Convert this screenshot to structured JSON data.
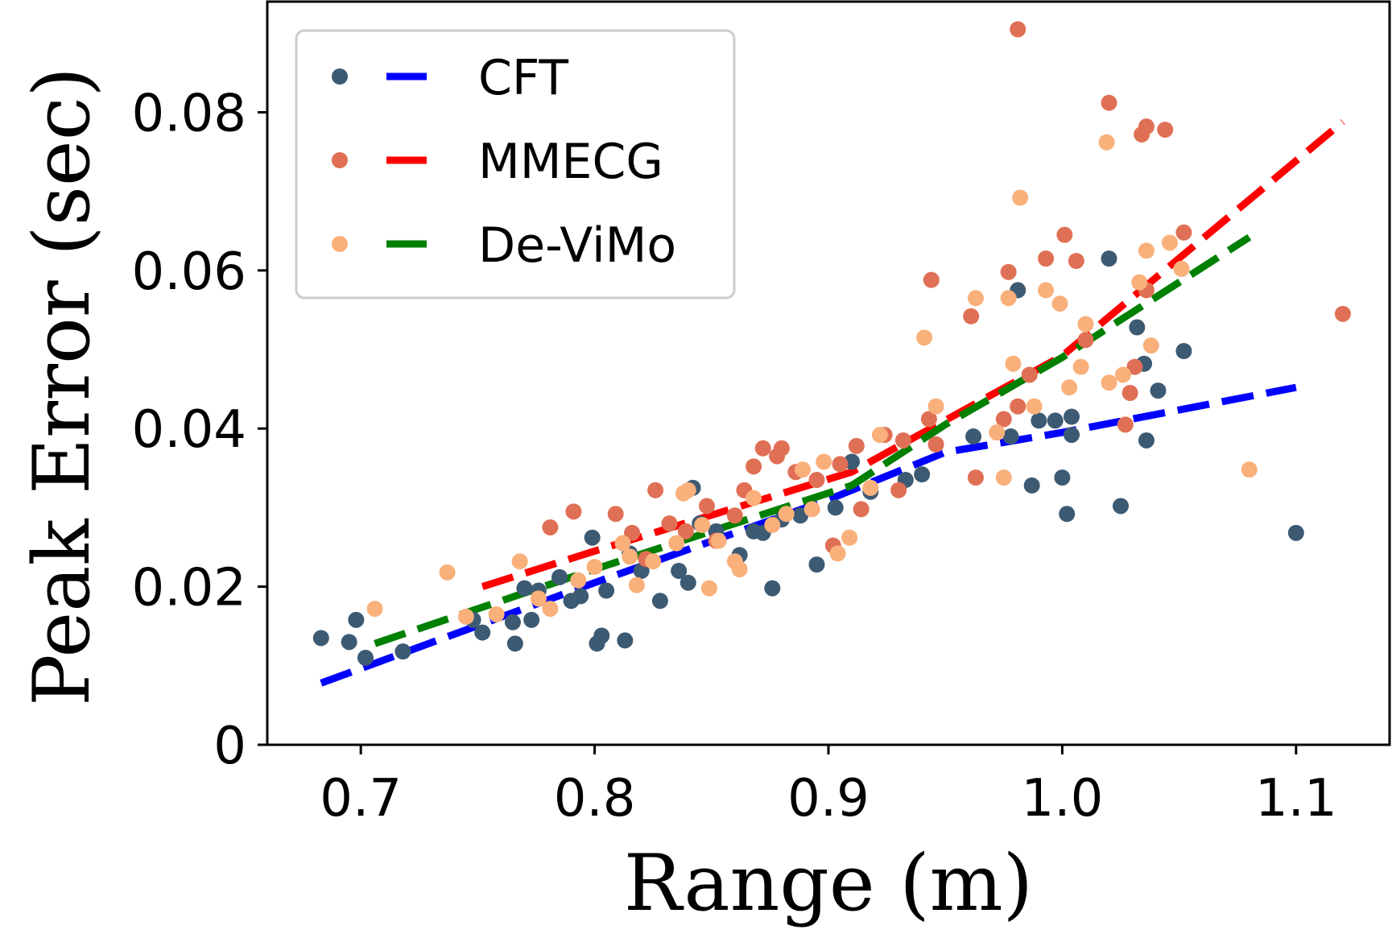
{
  "chart_data": {
    "type": "scatter",
    "xlabel": "Range (m)",
    "ylabel": "Peak Error (sec)",
    "xlim": [
      0.66,
      1.14
    ],
    "ylim": [
      0,
      0.094
    ],
    "xticks": [
      0.7,
      0.8,
      0.9,
      1.0,
      1.1
    ],
    "xtick_labels": [
      "0.7",
      "0.8",
      "0.9",
      "1.0",
      "1.1"
    ],
    "yticks": [
      0,
      0.02,
      0.04,
      0.06,
      0.08
    ],
    "ytick_labels": [
      "0",
      "0.02",
      "0.04",
      "0.06",
      "0.08"
    ],
    "grid": false,
    "legend_position": "top-left",
    "series": [
      {
        "name": "CFT",
        "marker_color": "#3d5a73",
        "line_color": "#0000ff",
        "points": [
          [
            0.683,
            0.0135
          ],
          [
            0.695,
            0.013
          ],
          [
            0.698,
            0.0158
          ],
          [
            0.702,
            0.011
          ],
          [
            0.718,
            0.0118
          ],
          [
            0.748,
            0.0158
          ],
          [
            0.752,
            0.0142
          ],
          [
            0.765,
            0.0155
          ],
          [
            0.766,
            0.0128
          ],
          [
            0.77,
            0.0198
          ],
          [
            0.773,
            0.0158
          ],
          [
            0.776,
            0.0195
          ],
          [
            0.785,
            0.0212
          ],
          [
            0.79,
            0.0182
          ],
          [
            0.794,
            0.0188
          ],
          [
            0.799,
            0.0262
          ],
          [
            0.801,
            0.0128
          ],
          [
            0.803,
            0.0138
          ],
          [
            0.805,
            0.0195
          ],
          [
            0.813,
            0.0132
          ],
          [
            0.815,
            0.0242
          ],
          [
            0.82,
            0.022
          ],
          [
            0.828,
            0.0182
          ],
          [
            0.836,
            0.022
          ],
          [
            0.84,
            0.0205
          ],
          [
            0.842,
            0.0325
          ],
          [
            0.845,
            0.028
          ],
          [
            0.852,
            0.027
          ],
          [
            0.862,
            0.024
          ],
          [
            0.868,
            0.027
          ],
          [
            0.872,
            0.0268
          ],
          [
            0.876,
            0.0198
          ],
          [
            0.88,
            0.0285
          ],
          [
            0.888,
            0.029
          ],
          [
            0.895,
            0.0228
          ],
          [
            0.903,
            0.03
          ],
          [
            0.91,
            0.0358
          ],
          [
            0.918,
            0.032
          ],
          [
            0.933,
            0.0335
          ],
          [
            0.94,
            0.0342
          ],
          [
            0.962,
            0.039
          ],
          [
            0.978,
            0.039
          ],
          [
            0.981,
            0.0575
          ],
          [
            0.987,
            0.0328
          ],
          [
            0.99,
            0.041
          ],
          [
            0.997,
            0.041
          ],
          [
            1.0,
            0.0338
          ],
          [
            1.002,
            0.0292
          ],
          [
            1.004,
            0.0392
          ],
          [
            1.004,
            0.0415
          ],
          [
            1.02,
            0.0615
          ],
          [
            1.025,
            0.0302
          ],
          [
            1.032,
            0.0528
          ],
          [
            1.035,
            0.0482
          ],
          [
            1.036,
            0.0385
          ],
          [
            1.041,
            0.0448
          ],
          [
            1.052,
            0.0498
          ],
          [
            1.1,
            0.0268
          ]
        ],
        "fit": [
          [
            0.683,
            0.0078
          ],
          [
            0.8,
            0.0205
          ],
          [
            0.9,
            0.031
          ],
          [
            0.95,
            0.037
          ],
          [
            1.0,
            0.0395
          ],
          [
            1.1,
            0.0452
          ]
        ]
      },
      {
        "name": "MMECG",
        "marker_color": "#e07055",
        "line_color": "#ff0000",
        "points": [
          [
            0.781,
            0.0275
          ],
          [
            0.791,
            0.0295
          ],
          [
            0.809,
            0.0292
          ],
          [
            0.816,
            0.0268
          ],
          [
            0.822,
            0.0235
          ],
          [
            0.826,
            0.0322
          ],
          [
            0.832,
            0.028
          ],
          [
            0.839,
            0.027
          ],
          [
            0.848,
            0.0302
          ],
          [
            0.852,
            0.0258
          ],
          [
            0.86,
            0.029
          ],
          [
            0.864,
            0.0322
          ],
          [
            0.868,
            0.0352
          ],
          [
            0.872,
            0.0375
          ],
          [
            0.878,
            0.0365
          ],
          [
            0.88,
            0.0375
          ],
          [
            0.886,
            0.0345
          ],
          [
            0.895,
            0.0335
          ],
          [
            0.902,
            0.0252
          ],
          [
            0.905,
            0.0355
          ],
          [
            0.912,
            0.0378
          ],
          [
            0.914,
            0.0298
          ],
          [
            0.924,
            0.0392
          ],
          [
            0.93,
            0.0322
          ],
          [
            0.932,
            0.0385
          ],
          [
            0.943,
            0.0412
          ],
          [
            0.944,
            0.0588
          ],
          [
            0.946,
            0.038
          ],
          [
            0.961,
            0.0542
          ],
          [
            0.963,
            0.0338
          ],
          [
            0.975,
            0.0412
          ],
          [
            0.977,
            0.0598
          ],
          [
            0.981,
            0.0428
          ],
          [
            0.981,
            0.0905
          ],
          [
            0.986,
            0.0468
          ],
          [
            0.993,
            0.0615
          ],
          [
            1.001,
            0.0645
          ],
          [
            1.006,
            0.0612
          ],
          [
            1.01,
            0.0512
          ],
          [
            1.02,
            0.0812
          ],
          [
            1.027,
            0.0405
          ],
          [
            1.029,
            0.0445
          ],
          [
            1.031,
            0.0478
          ],
          [
            1.034,
            0.0772
          ],
          [
            1.036,
            0.0782
          ],
          [
            1.036,
            0.0575
          ],
          [
            1.044,
            0.0778
          ],
          [
            1.052,
            0.0648
          ],
          [
            1.12,
            0.0545
          ]
        ],
        "fit": [
          [
            0.752,
            0.02
          ],
          [
            0.8,
            0.0245
          ],
          [
            0.91,
            0.0345
          ],
          [
            1.0,
            0.0492
          ],
          [
            1.12,
            0.0788
          ]
        ]
      },
      {
        "name": "De-ViMo",
        "marker_color": "#f9b07a",
        "line_color": "#008000",
        "points": [
          [
            0.706,
            0.0172
          ],
          [
            0.737,
            0.0218
          ],
          [
            0.745,
            0.0162
          ],
          [
            0.758,
            0.0165
          ],
          [
            0.768,
            0.0232
          ],
          [
            0.776,
            0.0185
          ],
          [
            0.781,
            0.0172
          ],
          [
            0.793,
            0.0208
          ],
          [
            0.8,
            0.0225
          ],
          [
            0.812,
            0.0255
          ],
          [
            0.815,
            0.0238
          ],
          [
            0.818,
            0.0202
          ],
          [
            0.825,
            0.0232
          ],
          [
            0.835,
            0.0255
          ],
          [
            0.838,
            0.0318
          ],
          [
            0.84,
            0.0322
          ],
          [
            0.846,
            0.0278
          ],
          [
            0.849,
            0.0198
          ],
          [
            0.853,
            0.0258
          ],
          [
            0.86,
            0.0232
          ],
          [
            0.862,
            0.0222
          ],
          [
            0.868,
            0.0312
          ],
          [
            0.876,
            0.0278
          ],
          [
            0.882,
            0.0292
          ],
          [
            0.889,
            0.0348
          ],
          [
            0.893,
            0.0298
          ],
          [
            0.898,
            0.0358
          ],
          [
            0.904,
            0.0242
          ],
          [
            0.909,
            0.0262
          ],
          [
            0.918,
            0.0325
          ],
          [
            0.922,
            0.0392
          ],
          [
            0.941,
            0.0515
          ],
          [
            0.946,
            0.0428
          ],
          [
            0.963,
            0.0565
          ],
          [
            0.972,
            0.0395
          ],
          [
            0.975,
            0.0338
          ],
          [
            0.977,
            0.0565
          ],
          [
            0.979,
            0.0482
          ],
          [
            0.982,
            0.0692
          ],
          [
            0.988,
            0.0428
          ],
          [
            0.993,
            0.0575
          ],
          [
            0.999,
            0.0558
          ],
          [
            1.003,
            0.0452
          ],
          [
            1.008,
            0.0478
          ],
          [
            1.01,
            0.0532
          ],
          [
            1.019,
            0.0762
          ],
          [
            1.02,
            0.0458
          ],
          [
            1.026,
            0.0468
          ],
          [
            1.033,
            0.0585
          ],
          [
            1.036,
            0.0625
          ],
          [
            1.038,
            0.0505
          ],
          [
            1.046,
            0.0635
          ],
          [
            1.051,
            0.0602
          ],
          [
            1.08,
            0.0348
          ]
        ],
        "fit": [
          [
            0.706,
            0.0128
          ],
          [
            0.8,
            0.0222
          ],
          [
            0.91,
            0.0328
          ],
          [
            0.95,
            0.0405
          ],
          [
            1.0,
            0.049
          ],
          [
            1.08,
            0.0642
          ]
        ]
      }
    ]
  }
}
